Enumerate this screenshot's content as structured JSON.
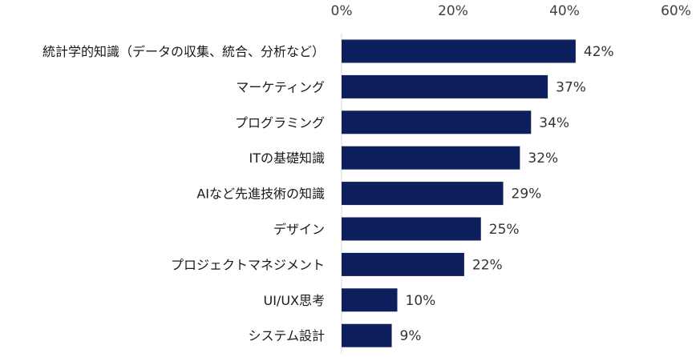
{
  "chart_data": {
    "type": "bar",
    "orientation": "horizontal",
    "title": "",
    "xlabel": "",
    "ylabel": "",
    "xlim": [
      0,
      60
    ],
    "ticks": [
      "0%",
      "20%",
      "40%",
      "60%"
    ],
    "tick_values": [
      0,
      20,
      40,
      60
    ],
    "grid": false,
    "axis_position": "top",
    "bar_color": "#0d1f5c",
    "categories": [
      "統計学的知識（データの収集、統合、分析など）",
      "マーケティング",
      "プログラミング",
      "ITの基礎知識",
      "AIなど先進技術の知識",
      "デザイン",
      "プロジェクトマネジメント",
      "UI/UX思考",
      "システム設計"
    ],
    "values": [
      42,
      37,
      34,
      32,
      29,
      25,
      22,
      10,
      9
    ],
    "value_labels": [
      "42%",
      "37%",
      "34%",
      "32%",
      "29%",
      "25%",
      "22%",
      "10%",
      "9%"
    ]
  }
}
